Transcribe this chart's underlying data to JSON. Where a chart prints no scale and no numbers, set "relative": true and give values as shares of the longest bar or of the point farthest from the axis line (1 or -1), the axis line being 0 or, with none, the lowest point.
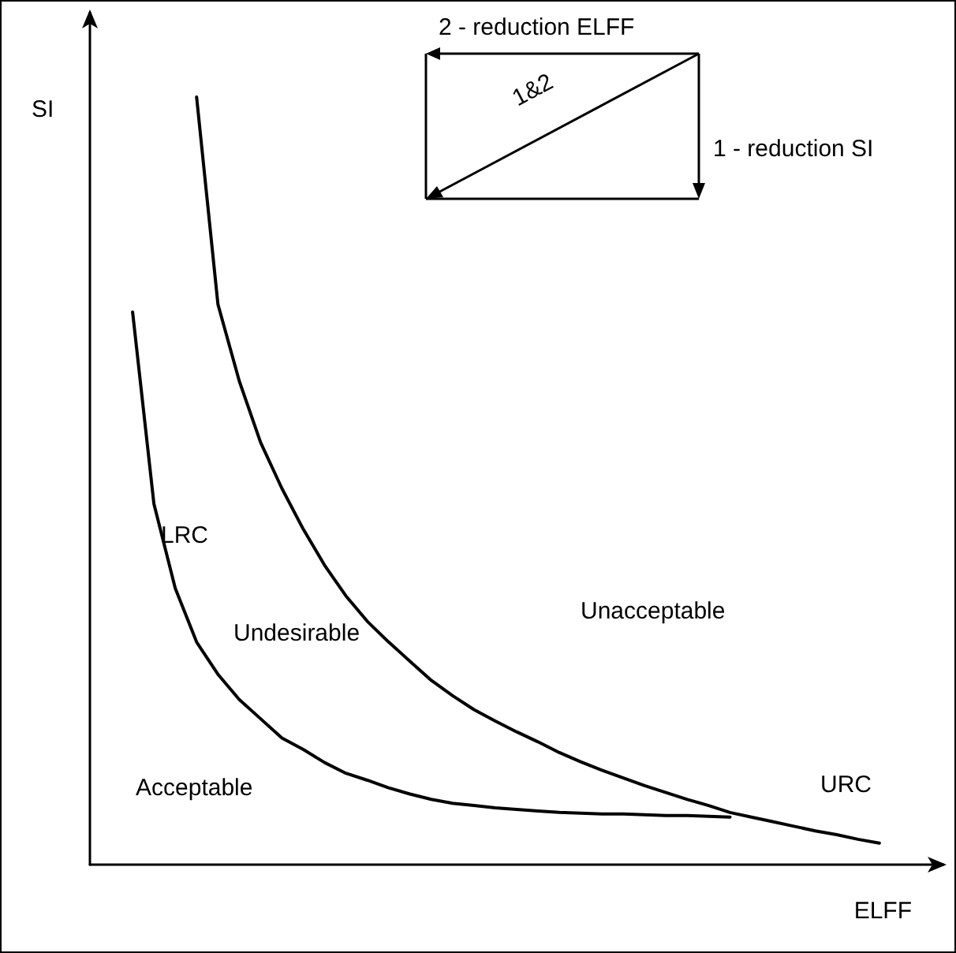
{
  "chart_data": {
    "type": "line",
    "relative": true,
    "xlabel": "ELFF",
    "ylabel": "SI",
    "grid": false,
    "legend": false,
    "marker": "none",
    "line_style": "solid",
    "annotations": [
      "2 - reduction ELFF",
      "1 - reduction SI",
      "1&2",
      "Unacceptable",
      "Undesirable",
      "Acceptable"
    ],
    "categories": [
      null,
      null,
      null,
      null,
      null,
      null,
      null,
      null,
      null,
      null,
      null,
      null,
      null,
      null,
      null,
      null,
      null,
      null,
      null,
      null,
      null,
      null,
      null,
      null,
      null,
      null,
      null,
      null,
      null,
      null,
      null,
      null,
      null,
      null,
      null,
      null,
      null,
      null,
      null,
      null,
      null
    ],
    "series": [
      {
        "name": "LRC",
        "color": "#000000",
        "values": [
          null,
          null,
          0.72,
          0.47,
          0.36,
          0.29,
          0.248,
          0.215,
          0.19,
          0.165,
          0.15,
          0.133,
          0.119,
          0.11,
          0.1,
          0.092,
          0.085,
          0.08,
          0.077,
          0.074,
          0.072,
          0.07,
          0.068,
          0.067,
          0.066,
          0.066,
          0.065,
          0.064,
          0.064,
          0.063,
          0.062,
          null,
          null,
          null,
          null,
          null,
          null,
          null,
          null,
          null,
          null
        ]
      },
      {
        "name": "URC",
        "color": "#000000",
        "values": [
          null,
          null,
          null,
          null,
          null,
          1,
          0.73,
          0.63,
          0.55,
          0.49,
          0.437,
          0.39,
          0.35,
          0.317,
          0.29,
          0.265,
          0.24,
          0.22,
          0.202,
          0.187,
          0.173,
          0.16,
          0.146,
          0.134,
          0.123,
          0.113,
          0.103,
          0.094,
          0.085,
          0.077,
          0.068,
          0.062,
          0.056,
          0.05,
          0.044,
          0.039,
          0.033,
          0.028,
          null,
          null,
          null
        ]
      }
    ]
  }
}
